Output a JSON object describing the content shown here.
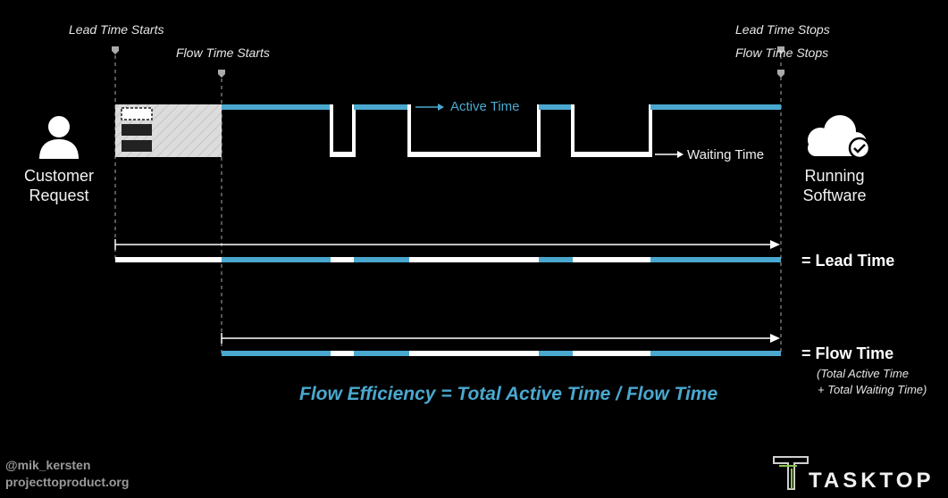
{
  "markers": {
    "lead_start": "Lead Time Starts",
    "flow_start": "Flow Time Starts",
    "lead_stop": "Lead Time Stops",
    "flow_stop": "Flow Time Stops"
  },
  "customer": {
    "line1": "Customer",
    "line2": "Request"
  },
  "software": {
    "line1": "Running",
    "line2": "Software"
  },
  "legend": {
    "active": "Active Time",
    "waiting": "Waiting Time"
  },
  "lead_time": {
    "label": "= Lead Time"
  },
  "flow_time": {
    "label": "= Flow Time",
    "note1": "(Total Active Time",
    "note2": "+ Total Waiting Time)"
  },
  "formula": "Flow Efficiency =  Total Active Time / Flow Time",
  "credits": {
    "handle": "@mik_kersten",
    "site": "projecttoproduct.org"
  },
  "brand": {
    "name": "TASKTOP"
  },
  "colors": {
    "active": "#4aa8cf",
    "waiting": "#ffffff",
    "background": "#000000",
    "queue": "#d8d8d8"
  }
}
